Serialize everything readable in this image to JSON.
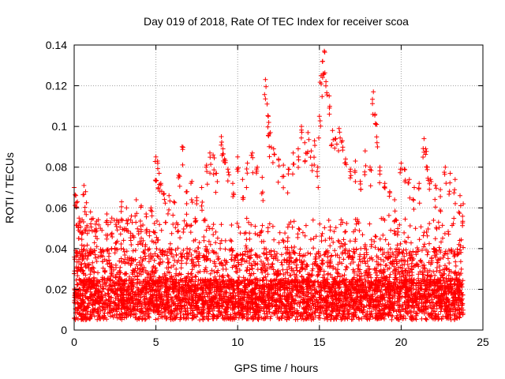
{
  "chart_data": {
    "type": "scatter",
    "title": "Day 019 of 2018, Rate Of TEC Index for receiver scoa",
    "xlabel": "GPS time / hours",
    "ylabel": "ROTI / TECUs",
    "xlim": [
      0,
      25
    ],
    "ylim": [
      0,
      0.14
    ],
    "x_ticks": [
      0,
      5,
      10,
      15,
      20,
      25
    ],
    "x_tick_labels": [
      "0",
      "5",
      "10",
      "15",
      "20",
      "25"
    ],
    "y_ticks": [
      0,
      0.02,
      0.04,
      0.06,
      0.08,
      0.1,
      0.12,
      0.14
    ],
    "y_tick_labels": [
      "0",
      "0.02",
      "0.04",
      "0.06",
      "0.08",
      "0.1",
      "0.12",
      "0.14"
    ],
    "grid": true,
    "marker": "+",
    "color": "#ff0000",
    "x_data_extent": [
      0,
      23.8
    ],
    "series": [
      {
        "name": "",
        "points": [
          [
            0.0,
            0.07
          ],
          [
            0.1,
            0.066
          ],
          [
            0.2,
            0.063
          ],
          [
            0.3,
            0.055
          ],
          [
            0.5,
            0.048
          ],
          [
            0.6,
            0.071
          ],
          [
            0.7,
            0.068
          ],
          [
            1.0,
            0.058
          ],
          [
            1.3,
            0.052
          ],
          [
            1.6,
            0.05
          ],
          [
            2.0,
            0.057
          ],
          [
            2.3,
            0.055
          ],
          [
            2.6,
            0.054
          ],
          [
            2.9,
            0.063
          ],
          [
            3.2,
            0.06
          ],
          [
            3.5,
            0.056
          ],
          [
            3.8,
            0.064
          ],
          [
            4.1,
            0.061
          ],
          [
            4.4,
            0.057
          ],
          [
            4.7,
            0.06
          ],
          [
            5.0,
            0.085
          ],
          [
            5.1,
            0.083
          ],
          [
            5.2,
            0.077
          ],
          [
            5.3,
            0.072
          ],
          [
            5.5,
            0.067
          ],
          [
            5.8,
            0.066
          ],
          [
            6.1,
            0.063
          ],
          [
            6.4,
            0.076
          ],
          [
            6.6,
            0.09
          ],
          [
            6.9,
            0.068
          ],
          [
            7.2,
            0.073
          ],
          [
            7.5,
            0.065
          ],
          [
            7.8,
            0.07
          ],
          [
            8.1,
            0.081
          ],
          [
            8.3,
            0.087
          ],
          [
            8.5,
            0.086
          ],
          [
            8.7,
            0.077
          ],
          [
            9.0,
            0.095
          ],
          [
            9.1,
            0.089
          ],
          [
            9.2,
            0.084
          ],
          [
            9.4,
            0.079
          ],
          [
            9.7,
            0.072
          ],
          [
            10.0,
            0.085
          ],
          [
            10.3,
            0.074
          ],
          [
            10.6,
            0.082
          ],
          [
            10.9,
            0.087
          ],
          [
            11.2,
            0.08
          ],
          [
            11.5,
            0.075
          ],
          [
            11.7,
            0.123
          ],
          [
            11.8,
            0.111
          ],
          [
            11.9,
            0.102
          ],
          [
            12.0,
            0.097
          ],
          [
            12.2,
            0.089
          ],
          [
            12.5,
            0.084
          ],
          [
            12.8,
            0.081
          ],
          [
            13.1,
            0.079
          ],
          [
            13.4,
            0.087
          ],
          [
            13.7,
            0.089
          ],
          [
            13.9,
            0.1
          ],
          [
            14.1,
            0.092
          ],
          [
            14.3,
            0.097
          ],
          [
            14.5,
            0.088
          ],
          [
            14.7,
            0.093
          ],
          [
            14.9,
            0.08
          ],
          [
            15.0,
            0.105
          ],
          [
            15.1,
            0.125
          ],
          [
            15.2,
            0.132
          ],
          [
            15.3,
            0.137
          ],
          [
            15.4,
            0.122
          ],
          [
            15.6,
            0.115
          ],
          [
            15.8,
            0.098
          ],
          [
            16.0,
            0.094
          ],
          [
            16.2,
            0.099
          ],
          [
            16.4,
            0.093
          ],
          [
            16.6,
            0.084
          ],
          [
            16.9,
            0.079
          ],
          [
            17.2,
            0.083
          ],
          [
            17.5,
            0.073
          ],
          [
            17.8,
            0.088
          ],
          [
            18.1,
            0.08
          ],
          [
            18.3,
            0.117
          ],
          [
            18.4,
            0.106
          ],
          [
            18.5,
            0.101
          ],
          [
            18.7,
            0.08
          ],
          [
            19.0,
            0.072
          ],
          [
            19.3,
            0.068
          ],
          [
            19.6,
            0.064
          ],
          [
            20.0,
            0.082
          ],
          [
            20.2,
            0.079
          ],
          [
            20.5,
            0.074
          ],
          [
            20.8,
            0.07
          ],
          [
            21.1,
            0.072
          ],
          [
            21.4,
            0.094
          ],
          [
            21.5,
            0.089
          ],
          [
            21.6,
            0.08
          ],
          [
            21.8,
            0.074
          ],
          [
            22.1,
            0.071
          ],
          [
            22.4,
            0.069
          ],
          [
            22.7,
            0.08
          ],
          [
            23.0,
            0.077
          ],
          [
            23.3,
            0.074
          ],
          [
            23.6,
            0.066
          ],
          [
            23.8,
            0.062
          ]
        ]
      }
    ]
  }
}
